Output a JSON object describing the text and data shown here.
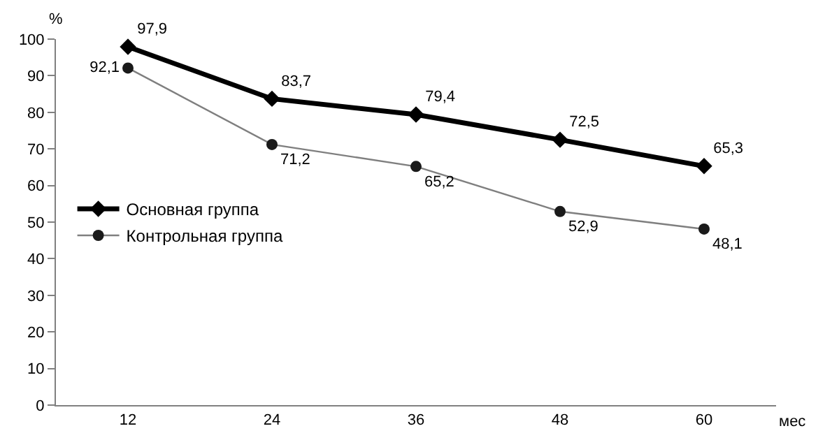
{
  "chart_data": {
    "type": "line",
    "xlabel": "мес",
    "ylabel": "%",
    "categories": [
      "12",
      "24",
      "36",
      "48",
      "60"
    ],
    "ylim": [
      0,
      100
    ],
    "yticks": [
      0,
      10,
      20,
      30,
      40,
      50,
      60,
      70,
      80,
      90,
      100
    ],
    "legend": "left",
    "series": [
      {
        "name": "Основная группа",
        "color": "#000000",
        "marker": "diamond",
        "values": [
          97.9,
          83.7,
          79.4,
          72.5,
          65.3
        ],
        "value_labels": [
          "97,9",
          "83,7",
          "79,4",
          "72,5",
          "65,3"
        ]
      },
      {
        "name": "Контрольная группа",
        "color": "#7f7f7f",
        "marker": "circle",
        "values": [
          92.1,
          71.2,
          65.2,
          52.9,
          48.1
        ],
        "value_labels": [
          "92,1",
          "71,2",
          "65,2",
          "52,9",
          "48,1"
        ]
      }
    ]
  }
}
